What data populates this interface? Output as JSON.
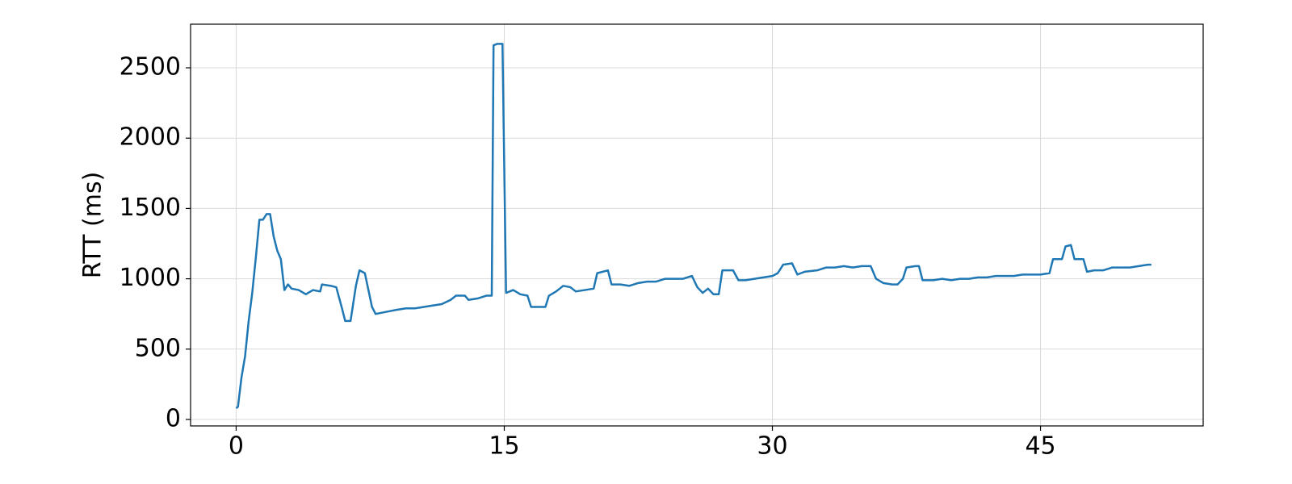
{
  "chart_data": {
    "type": "line",
    "ylabel": "RTT (ms)",
    "color": "#1f77b4",
    "grid": true,
    "xlim": [
      -2.55,
      54.1
    ],
    "ylim": [
      -46,
      2810
    ],
    "xticks": [
      0,
      15,
      30,
      45
    ],
    "yticks": [
      0,
      500,
      1000,
      1500,
      2000,
      2500
    ],
    "x": [
      0,
      0.1,
      0.3,
      0.5,
      0.7,
      0.9,
      1.1,
      1.3,
      1.5,
      1.7,
      1.9,
      2.1,
      2.3,
      2.5,
      2.7,
      2.9,
      3.1,
      3.5,
      3.9,
      4.3,
      4.7,
      4.8,
      5.3,
      5.6,
      5.9,
      6.1,
      6.4,
      6.7,
      6.9,
      7.2,
      7.4,
      7.6,
      7.8,
      8.2,
      8.6,
      9.0,
      9.5,
      10.0,
      10.5,
      11.0,
      11.5,
      12.0,
      12.3,
      12.8,
      13.0,
      13.5,
      14.0,
      14.3,
      14.4,
      14.6,
      14.9,
      15.1,
      15.5,
      15.9,
      16.3,
      16.5,
      16.8,
      17.3,
      17.5,
      17.9,
      18.3,
      18.7,
      19.0,
      19.5,
      20.0,
      20.2,
      20.8,
      21.0,
      21.5,
      22.0,
      22.5,
      23.0,
      23.5,
      24.0,
      24.5,
      25.0,
      25.5,
      25.8,
      26.1,
      26.4,
      26.7,
      27.0,
      27.2,
      27.8,
      28.1,
      28.5,
      29.0,
      29.5,
      30.0,
      30.3,
      30.6,
      31.1,
      31.4,
      31.8,
      32.5,
      33.0,
      33.5,
      34.0,
      34.5,
      35.0,
      35.5,
      35.8,
      36.2,
      36.7,
      37.0,
      37.3,
      37.5,
      38.0,
      38.2,
      38.4,
      39.0,
      39.5,
      40.0,
      40.5,
      41.0,
      41.5,
      42.0,
      42.5,
      43.0,
      43.5,
      44.0,
      44.5,
      45.0,
      45.5,
      45.7,
      46.2,
      46.4,
      46.7,
      46.9,
      47.4,
      47.6,
      48.0,
      48.5,
      49.0,
      49.5,
      50.0,
      50.5,
      51.0,
      51.2
    ],
    "values": [
      80,
      90,
      300,
      450,
      700,
      900,
      1150,
      1420,
      1420,
      1460,
      1460,
      1300,
      1200,
      1140,
      920,
      960,
      930,
      920,
      890,
      920,
      910,
      960,
      950,
      940,
      800,
      700,
      700,
      950,
      1060,
      1040,
      920,
      800,
      750,
      760,
      770,
      780,
      790,
      790,
      800,
      810,
      820,
      850,
      880,
      880,
      850,
      860,
      880,
      880,
      2660,
      2670,
      2670,
      900,
      920,
      890,
      880,
      800,
      800,
      800,
      880,
      910,
      950,
      940,
      910,
      920,
      930,
      1040,
      1060,
      960,
      960,
      950,
      970,
      980,
      980,
      1000,
      1000,
      1000,
      1020,
      940,
      900,
      930,
      890,
      890,
      1060,
      1060,
      990,
      990,
      1000,
      1010,
      1020,
      1040,
      1100,
      1110,
      1030,
      1050,
      1060,
      1080,
      1080,
      1090,
      1080,
      1090,
      1090,
      1000,
      970,
      960,
      960,
      1000,
      1080,
      1090,
      1090,
      990,
      990,
      1000,
      990,
      1000,
      1000,
      1010,
      1010,
      1020,
      1020,
      1020,
      1030,
      1030,
      1030,
      1040,
      1140,
      1140,
      1230,
      1240,
      1140,
      1140,
      1050,
      1060,
      1060,
      1080,
      1080,
      1080,
      1090,
      1100,
      1100
    ]
  }
}
